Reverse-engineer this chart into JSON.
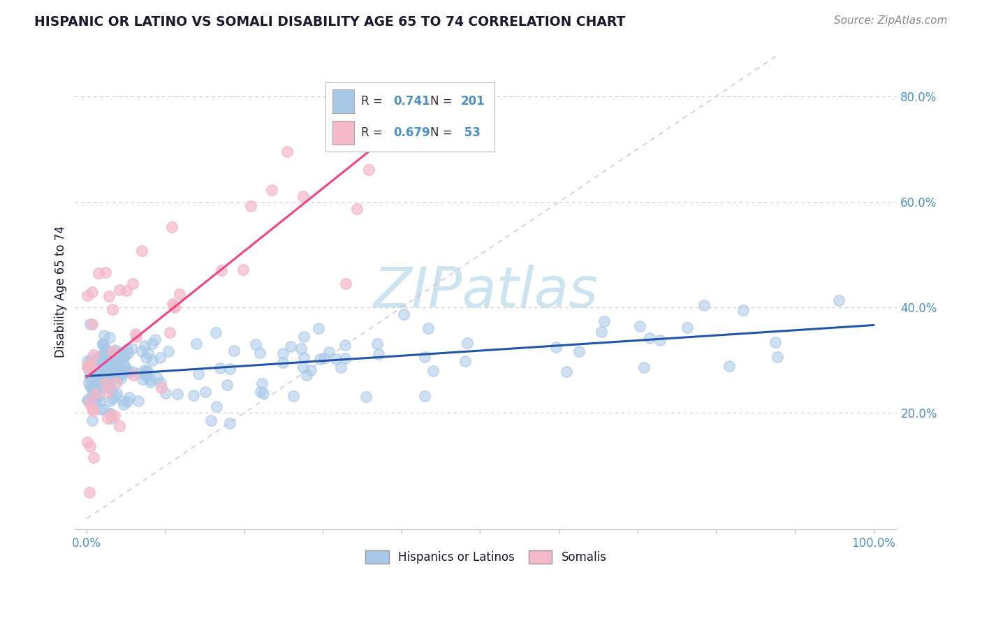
{
  "title": "HISPANIC OR LATINO VS SOMALI DISABILITY AGE 65 TO 74 CORRELATION CHART",
  "source": "Source: ZipAtlas.com",
  "ylabel": "Disability Age 65 to 74",
  "legend_label1": "Hispanics or Latinos",
  "legend_label2": "Somalis",
  "blue_scatter_color": "#a8c8e8",
  "pink_scatter_color": "#f4b8c8",
  "blue_line_color": "#2255aa",
  "pink_line_color": "#ee4488",
  "title_color": "#1a1a2e",
  "axis_color": "#4a90c4",
  "r_label_color": "#333333",
  "n_value_color": "#4a90c4",
  "watermark_color": "#cce4f0",
  "background_color": "#ffffff",
  "grid_color": "#cccccc",
  "diag_color": "#ddbbcc",
  "r1": "0.741",
  "n1": "201",
  "r2": "0.679",
  "n2": "53"
}
